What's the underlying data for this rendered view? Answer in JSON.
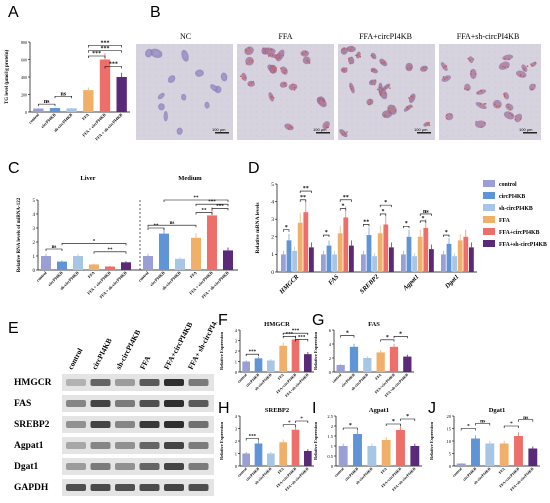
{
  "panels": {
    "A": "A",
    "B": "B",
    "C": "C",
    "D": "D",
    "E": "E",
    "F": "F",
    "G": "G",
    "H": "H",
    "I": "I",
    "J": "J"
  },
  "colors": {
    "control": "#9a9fd6",
    "circPI4KB": "#5f95d7",
    "sh-circPI4KB": "#a7c6e6",
    "FFA": "#f0b06a",
    "FFA+circPI4KB": "#ee6e6a",
    "FFA+sh-circPI4KB": "#5a2a78"
  },
  "microscopy": {
    "titles": [
      "NC",
      "FFA",
      "FFA+circPI4KB",
      "FFA+sh-circPI4KB"
    ],
    "scale": "100 μm"
  },
  "western": {
    "lanes": [
      "control",
      "circPI4KB",
      "sh-circPI4KB",
      "FFA",
      "FFA+circPI4KB",
      "FFA+ sh-circPI4KB"
    ],
    "proteins": [
      "HMGCR",
      "FAS",
      "SREBP2",
      "Agpat1",
      "Dgat1",
      "GAPDH"
    ]
  },
  "chart_data": [
    {
      "panel": "A",
      "type": "bar",
      "categories": [
        "control",
        "circPI4KB",
        "sh-circPI4KB",
        "FFA",
        "FFA + circPI4KB",
        "FFA + sh-circPI4KB"
      ],
      "values": [
        40,
        45,
        42,
        250,
        600,
        400
      ],
      "ylabel": "TG level (μmol/g protein)",
      "ylim": [
        0,
        800
      ],
      "yticks": [
        0,
        200,
        400,
        600,
        800
      ],
      "annotations": [
        "ns",
        "ns",
        "***",
        "***",
        "***",
        "***"
      ]
    },
    {
      "panel": "C",
      "type": "bar",
      "groups": [
        "Liver",
        "Medium"
      ],
      "categories": [
        "control",
        "circPI4KB",
        "sh-circPI4KB",
        "FFA",
        "FFA + circPI4KB",
        "FFA + sh-circPI4KB"
      ],
      "series": [
        {
          "values": [
            1.0,
            0.6,
            1.0,
            0.4,
            0.25,
            0.55
          ]
        },
        {
          "values": [
            1.0,
            2.6,
            0.8,
            2.3,
            3.9,
            1.4
          ]
        }
      ],
      "ylabel": "Relative RNA levels of miRNA-122",
      "ylim": [
        0,
        5
      ],
      "yticks": [
        0,
        1,
        2,
        3,
        4,
        5
      ],
      "annotations": [
        "ns",
        "**",
        "*",
        "ns",
        "**",
        "**",
        "***",
        "***",
        "**"
      ]
    },
    {
      "panel": "D",
      "type": "bar",
      "categories": [
        "HMGCR",
        "FAS",
        "SREBP2",
        "Agpat1",
        "Dgat1"
      ],
      "series": [
        {
          "name": "control",
          "values": [
            1.0,
            1.0,
            1.0,
            1.0,
            1.0
          ]
        },
        {
          "name": "circPI4KB",
          "values": [
            1.8,
            1.5,
            2.1,
            2.0,
            1.6
          ]
        },
        {
          "name": "sh-circPI4KB",
          "values": [
            1.2,
            1.0,
            0.9,
            0.9,
            0.9
          ]
        },
        {
          "name": "FFA",
          "values": [
            2.8,
            2.2,
            2.2,
            2.0,
            1.8
          ]
        },
        {
          "name": "FFA+circPI4KB",
          "values": [
            3.4,
            3.1,
            2.7,
            2.5,
            2.0
          ]
        },
        {
          "name": "FFA+sh-circPI4KB",
          "values": [
            1.4,
            1.5,
            1.4,
            1.3,
            1.4
          ]
        }
      ],
      "ylabel": "Relative mRNA levels",
      "ylim": [
        0,
        5
      ],
      "yticks": [
        0,
        1,
        2,
        3,
        4,
        5
      ],
      "legend": "right",
      "annotations": [
        "*",
        "**",
        "**",
        "*",
        "*",
        "**",
        "**",
        "*",
        "*",
        "*",
        "*",
        "ns",
        "*"
      ]
    },
    {
      "panel": "F",
      "type": "bar",
      "title": "HMGCR",
      "ylabel": "Relative Expression",
      "ylim": [
        0,
        4
      ],
      "yticks": [
        0,
        1,
        2,
        3,
        4
      ],
      "categories": [
        "control",
        "circPI4KB",
        "sh-circPI4KB",
        "FFA",
        "FFA+circPI4KB",
        "FFA+sh-circPI4KB"
      ],
      "values": [
        1.0,
        1.3,
        1.1,
        2.5,
        3.1,
        1.7
      ],
      "annotations": [
        "***",
        "***",
        "***",
        "***"
      ]
    },
    {
      "panel": "G",
      "type": "bar",
      "title": "FAS",
      "ylabel": "Relative Expression",
      "ylim": [
        0,
        6
      ],
      "yticks": [
        0,
        2,
        4,
        6
      ],
      "categories": [
        "control",
        "circPI4KB",
        "sh-circPI4KB",
        "FFA",
        "FFA+circPI4KB",
        "FFA+sh-circPI4KB"
      ],
      "values": [
        1.0,
        3.6,
        2.0,
        2.8,
        3.6,
        2.2
      ],
      "annotations": [
        "*",
        "*",
        "*"
      ]
    },
    {
      "panel": "H",
      "type": "bar",
      "title": "SREBP2",
      "ylabel": "Relative Expression",
      "ylim": [
        0,
        4
      ],
      "yticks": [
        0,
        1,
        2,
        3,
        4
      ],
      "categories": [
        "control",
        "circPI4KB",
        "sh-circPI4KB",
        "FFA",
        "FFA+circPI4KB",
        "FFA+sh-circPI4KB"
      ],
      "values": [
        1.0,
        1.8,
        1.0,
        1.9,
        2.9,
        1.2
      ],
      "annotations": [
        "***",
        "*",
        "*"
      ]
    },
    {
      "panel": "I",
      "type": "bar",
      "title": "Agpat1",
      "ylabel": "Relative Expression",
      "ylim": [
        0,
        2.5
      ],
      "yticks": [
        0,
        0.5,
        1.0,
        1.5,
        2.0,
        2.5
      ],
      "categories": [
        "control",
        "circPI4KB",
        "sh-circPI4KB",
        "FFA",
        "FFA+circPI4KB",
        "FFA+sh-circPI4KB"
      ],
      "values": [
        1.0,
        1.6,
        1.0,
        1.3,
        1.8,
        1.0
      ],
      "annotations": [
        "*",
        "*",
        "*"
      ]
    },
    {
      "panel": "J",
      "type": "bar",
      "title": "Dgat1",
      "ylabel": "Relative Expression",
      "ylim": [
        0,
        20
      ],
      "yticks": [
        0,
        5,
        10,
        15,
        20
      ],
      "categories": [
        "control",
        "circPI4KB",
        "sh-circPI4KB",
        "FFA",
        "FFA+circPI4KB",
        "FFA+sh-circPI4KB"
      ],
      "values": [
        1.0,
        11,
        9,
        9,
        12,
        7
      ],
      "annotations": [
        "*",
        "ns",
        "*",
        "ns"
      ]
    }
  ]
}
